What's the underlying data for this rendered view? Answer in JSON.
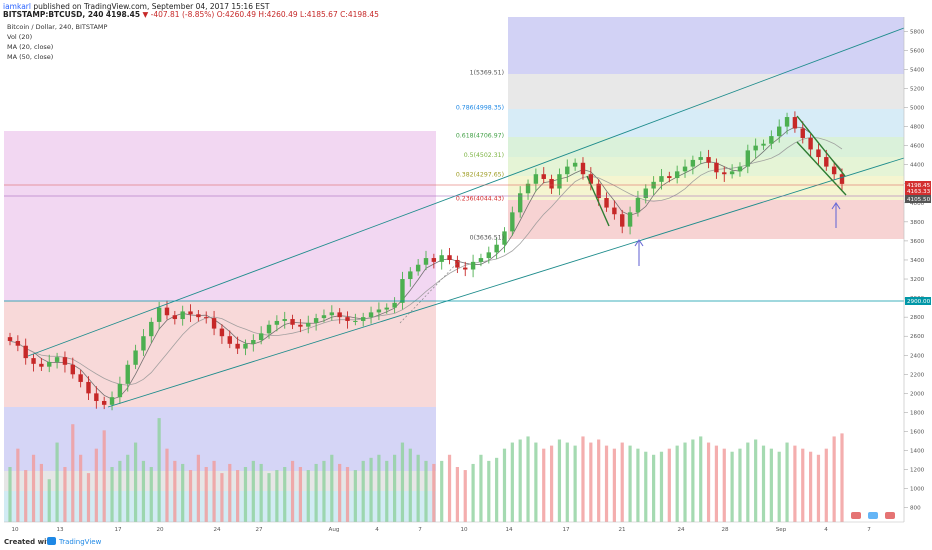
{
  "header": {
    "author": "iamkarl",
    "published_text": "published on TradingView.com, September 04, 2017 15:16 EST",
    "symbol": "BITSTAMP:BTCUSD, 240",
    "last": "4198.45",
    "change": "-407.81 (-8.85%)",
    "ohlc": "O:4260.49 H:4260.49 L:4185.67 C:4198.45"
  },
  "legend": {
    "title": "Bitcoin / Dollar, 240, BITSTAMP",
    "vol": "Vol (20)",
    "ma20": "MA (20, close)",
    "ma50": "MA (50, close)"
  },
  "footer": {
    "created_with": "Created with",
    "brand": "TradingView"
  },
  "colors": {
    "up": "#4caf50",
    "down": "#c62828",
    "channel": "#1e8c8c",
    "price_tag": "#d32f2f",
    "level_tag": "#0097a7"
  },
  "chart_data": {
    "type": "candlestick",
    "symbol": "BITSTAMP:BTCUSD",
    "interval": "240",
    "y_axis_ticks": [
      800,
      1000,
      1200,
      1400,
      1600,
      1800,
      2000,
      2200,
      2400,
      2600,
      2800,
      3000,
      3200,
      3400,
      3600,
      3800,
      4000,
      4200,
      4400,
      4600,
      4800,
      5000,
      5200,
      5400,
      5600,
      5800
    ],
    "x_axis_labels": [
      "10",
      "13",
      "17",
      "20",
      "24",
      "27",
      "Aug",
      "4",
      "7",
      "10",
      "14",
      "17",
      "21",
      "24",
      "28",
      "Sep",
      "4",
      "7"
    ],
    "price_tags": [
      "4198.45",
      "4163.33",
      "4105.50",
      "2900.00"
    ],
    "fibonacci": [
      {
        "label": "1(5369.51)",
        "value": 5369.51
      },
      {
        "label": "0.786(4998.35)",
        "value": 4998.35
      },
      {
        "label": "0.618(4706.97)",
        "value": 4706.97
      },
      {
        "label": "0.5(4502.31)",
        "value": 4502.31
      },
      {
        "label": "0.382(4297.65)",
        "value": 4297.65
      },
      {
        "label": "0.236(4044.43)",
        "value": 4044.43
      },
      {
        "label": "0(3636.51)",
        "value": 3636.51
      }
    ],
    "closes": [
      2550,
      2500,
      2370,
      2310,
      2280,
      2330,
      2380,
      2300,
      2200,
      2120,
      2000,
      1920,
      1880,
      1960,
      2100,
      2300,
      2450,
      2600,
      2750,
      2900,
      2820,
      2780,
      2860,
      2830,
      2800,
      2790,
      2680,
      2600,
      2520,
      2470,
      2520,
      2560,
      2630,
      2720,
      2760,
      2780,
      2720,
      2700,
      2740,
      2790,
      2820,
      2850,
      2800,
      2760,
      2760,
      2800,
      2850,
      2880,
      2900,
      2950,
      3200,
      3280,
      3350,
      3420,
      3380,
      3450,
      3400,
      3320,
      3300,
      3380,
      3420,
      3480,
      3560,
      3700,
      3900,
      4100,
      4200,
      4300,
      4250,
      4150,
      4300,
      4380,
      4420,
      4300,
      4200,
      4050,
      3950,
      3880,
      3750,
      3900,
      4050,
      4150,
      4220,
      4280,
      4260,
      4330,
      4380,
      4450,
      4480,
      4420,
      4320,
      4300,
      4330,
      4380,
      4550,
      4600,
      4620,
      4700,
      4800,
      4900,
      4780,
      4680,
      4560,
      4480,
      4380,
      4300,
      4198.45
    ],
    "volumes": [
      900,
      1200,
      850,
      1100,
      950,
      700,
      1300,
      900,
      1600,
      1100,
      800,
      1200,
      1500,
      900,
      1000,
      1100,
      1300,
      1000,
      900,
      1700,
      1200,
      1000,
      950,
      850,
      1100,
      900,
      1000,
      800,
      950,
      850,
      900,
      1000,
      950,
      800,
      850,
      900,
      1000,
      900,
      850,
      950,
      1000,
      1100,
      950,
      900,
      850,
      1000,
      1050,
      1100,
      1000,
      1100,
      1300,
      1200,
      1100,
      1000,
      950,
      1000,
      1100,
      900,
      850,
      950,
      1100,
      1000,
      1050,
      1200,
      1300,
      1350,
      1400,
      1300,
      1200,
      1250,
      1350,
      1300,
      1250,
      1400,
      1300,
      1350,
      1250,
      1200,
      1300,
      1250,
      1200,
      1150,
      1100,
      1150,
      1200,
      1250,
      1300,
      1350,
      1400,
      1300,
      1250,
      1200,
      1150,
      1200,
      1300,
      1350,
      1250,
      1200,
      1150,
      1300,
      1250,
      1200,
      1150,
      1100,
      1200,
      1400,
      1450
    ]
  }
}
